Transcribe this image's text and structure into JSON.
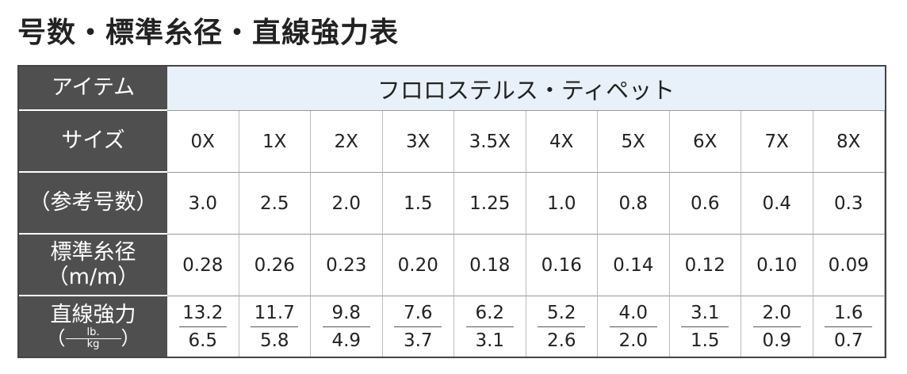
{
  "title": "号数・標準糸径・直線強力表",
  "table": {
    "item": {
      "header": "アイテム",
      "value": "フロロステルス・ティペット"
    },
    "size": {
      "header": "サイズ",
      "values": [
        "0X",
        "1X",
        "2X",
        "3X",
        "3.5X",
        "4X",
        "5X",
        "6X",
        "7X",
        "8X"
      ]
    },
    "reference": {
      "header": "（参考号数）",
      "values": [
        "3.0",
        "2.5",
        "2.0",
        "1.5",
        "1.25",
        "1.0",
        "0.8",
        "0.6",
        "0.4",
        "0.3"
      ]
    },
    "diameter": {
      "header": [
        "標準糸径",
        "（m/m）"
      ],
      "values": [
        "0.28",
        "0.26",
        "0.23",
        "0.20",
        "0.18",
        "0.16",
        "0.14",
        "0.12",
        "0.10",
        "0.09"
      ]
    },
    "strength": {
      "header": "直線強力",
      "unit": {
        "open": "（",
        "numerator": "lb.",
        "denominator": "kg",
        "close": "）"
      },
      "values": [
        {
          "lb": "13.2",
          "kg": "6.5"
        },
        {
          "lb": "11.7",
          "kg": "5.8"
        },
        {
          "lb": "9.8",
          "kg": "4.9"
        },
        {
          "lb": "7.6",
          "kg": "3.7"
        },
        {
          "lb": "6.2",
          "kg": "3.1"
        },
        {
          "lb": "5.2",
          "kg": "2.6"
        },
        {
          "lb": "4.0",
          "kg": "2.0"
        },
        {
          "lb": "3.1",
          "kg": "1.5"
        },
        {
          "lb": "2.0",
          "kg": "0.9"
        },
        {
          "lb": "1.6",
          "kg": "0.7"
        }
      ]
    }
  }
}
